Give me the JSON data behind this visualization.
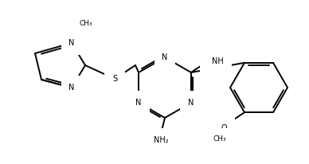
{
  "bg_color": "#ffffff",
  "line_color": "#000000",
  "line_width": 1.4,
  "font_size": 7.0
}
